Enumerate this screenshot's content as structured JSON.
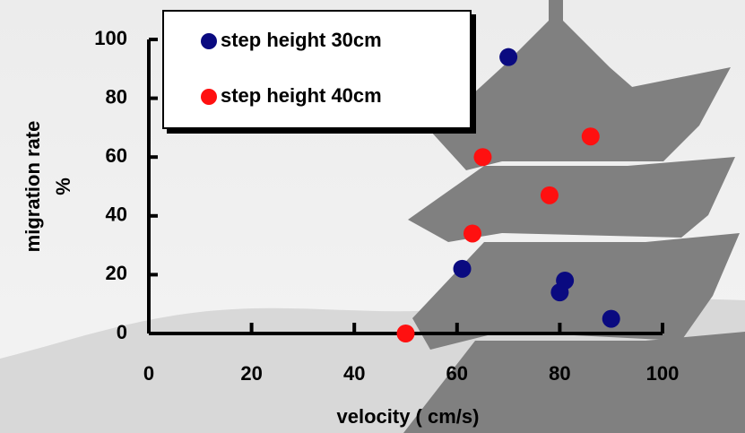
{
  "chart_data": {
    "type": "scatter",
    "xlabel": "velocity ( cm/s)",
    "ylabel": [
      "migration rate",
      "%"
    ],
    "xlim": [
      0,
      100
    ],
    "xticks": [
      0,
      20,
      40,
      60,
      80,
      100
    ],
    "ylim": [
      0,
      100
    ],
    "yticks": [
      0,
      20,
      40,
      60,
      80,
      100
    ],
    "legend": "top-left",
    "series": [
      {
        "name": "step height 30cm",
        "color": "#0a0a80",
        "x": [
          70,
          61,
          81,
          80,
          90
        ],
        "values": [
          94,
          22,
          18,
          14,
          5
        ]
      },
      {
        "name": "step height 40cm",
        "color": "#ff1010",
        "x": [
          50,
          63,
          65,
          78,
          86
        ],
        "values": [
          0,
          34,
          60,
          47,
          67
        ]
      }
    ]
  }
}
